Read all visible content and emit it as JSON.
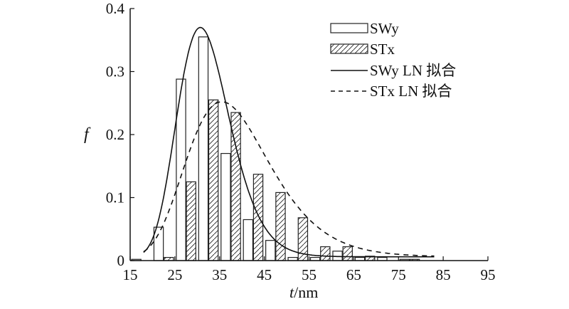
{
  "chart_data": {
    "type": "bar",
    "title": "",
    "xlabel_italic": "t",
    "xlabel_rest": "/nm",
    "ylabel": "f",
    "xlim": [
      15,
      95
    ],
    "ylim": [
      0,
      0.4
    ],
    "xticks": [
      15,
      25,
      35,
      45,
      55,
      65,
      75,
      85,
      95
    ],
    "yticks": [
      0,
      0.1,
      0.2,
      0.3,
      0.4
    ],
    "ytick_labels": [
      "0",
      "0.1",
      "0.2",
      "0.3",
      "0.4"
    ],
    "grid": false,
    "legend_position": "top-right",
    "bin_width": 5,
    "bin_centers": [
      17.5,
      22.5,
      27.5,
      32.5,
      37.5,
      42.5,
      47.5,
      52.5,
      57.5,
      62.5,
      67.5,
      72.5,
      77.5,
      82.5
    ],
    "series": [
      {
        "name": "SWy",
        "style": "open",
        "values": [
          0.002,
          0.053,
          0.288,
          0.355,
          0.17,
          0.065,
          0.032,
          0.005,
          0.005,
          0.015,
          0.005,
          0.005,
          0.002,
          0
        ]
      },
      {
        "name": "STx",
        "style": "hatched",
        "values": [
          0,
          0.005,
          0.125,
          0.255,
          0.235,
          0.137,
          0.108,
          0.068,
          0.022,
          0.022,
          0.007,
          0,
          0.002,
          0
        ]
      }
    ],
    "fits": [
      {
        "name": "SWy LN 拟合",
        "style": "solid",
        "mode": 30.7,
        "peak": 0.37,
        "sigma": 0.19,
        "offset": 0.006,
        "x_range": [
          18,
          83
        ]
      },
      {
        "name": "STx LN 拟合",
        "style": "dashed",
        "mode": 35.5,
        "peak": 0.252,
        "sigma": 0.26,
        "offset": 0.006,
        "x_range": [
          18,
          83
        ]
      }
    ]
  }
}
